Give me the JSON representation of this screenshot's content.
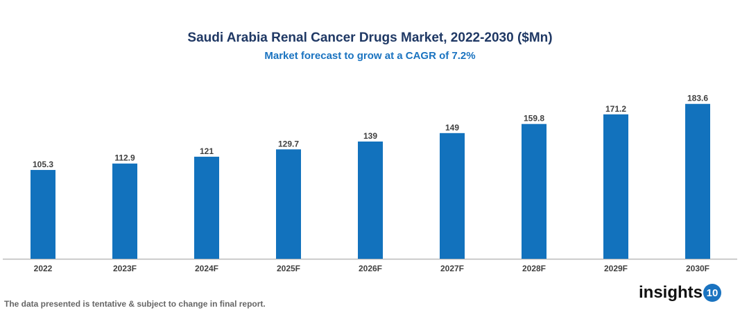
{
  "chart_data": {
    "type": "bar",
    "title": "Saudi Arabia Renal Cancer Drugs Market, 2022-2030 ($Mn)",
    "subtitle": "Market forecast to grow at a CAGR of 7.2%",
    "categories": [
      "2022",
      "2023F",
      "2024F",
      "2025F",
      "2026F",
      "2027F",
      "2028F",
      "2029F",
      "2030F"
    ],
    "values": [
      105.3,
      112.9,
      121,
      129.7,
      139,
      149,
      159.8,
      171.2,
      183.6
    ],
    "xlabel": "",
    "ylabel": "",
    "ylim": [
      0,
      190
    ],
    "grid": false,
    "legend": "none",
    "bar_color": "#1272bd"
  },
  "footnote": "The data presented is tentative & subject to change in final report.",
  "logo": {
    "text": "insights",
    "badge": "10"
  }
}
